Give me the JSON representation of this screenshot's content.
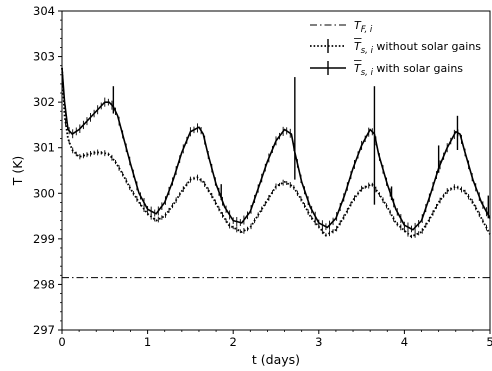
{
  "chart_data": {
    "type": "line",
    "title": "",
    "xlabel": "t (days)",
    "ylabel": "T (K)",
    "xlim": [
      0,
      5
    ],
    "ylim": [
      297,
      304
    ],
    "xticks": [
      "0",
      "1",
      "2",
      "3",
      "4",
      "5"
    ],
    "yticks": [
      "297",
      "298",
      "299",
      "300",
      "301",
      "302",
      "303",
      "304"
    ],
    "grid": false,
    "legend_position": "top-right",
    "series": [
      {
        "name": "T_{F,i}",
        "legend": {
          "main": "T",
          "sub": "F, i",
          "overline": false,
          "suffix": ""
        },
        "style": "dashdot",
        "x": [
          0,
          5
        ],
        "y": [
          298.15,
          298.15
        ]
      },
      {
        "name": "T̄_{s,i} without solar gains",
        "legend": {
          "main": "T",
          "sub": "s, i",
          "overline": true,
          "suffix": " without solar gains"
        },
        "style": "dotted",
        "errorbars": true,
        "x": [
          0.0,
          0.03,
          0.07,
          0.12,
          0.2,
          0.3,
          0.4,
          0.5,
          0.55,
          0.62,
          0.7,
          0.8,
          0.9,
          1.0,
          1.1,
          1.2,
          1.3,
          1.4,
          1.5,
          1.58,
          1.65,
          1.75,
          1.85,
          1.95,
          2.1,
          2.2,
          2.3,
          2.4,
          2.5,
          2.6,
          2.7,
          2.8,
          2.9,
          3.08,
          3.2,
          3.3,
          3.4,
          3.5,
          3.62,
          3.7,
          3.8,
          3.9,
          4.08,
          4.2,
          4.3,
          4.4,
          4.5,
          4.6,
          4.7,
          4.8,
          4.9,
          5.0
        ],
        "y": [
          302.75,
          301.7,
          301.2,
          300.95,
          300.8,
          300.85,
          300.9,
          300.88,
          300.85,
          300.7,
          300.45,
          300.1,
          299.8,
          299.55,
          299.4,
          299.5,
          299.75,
          300.05,
          300.3,
          300.35,
          300.25,
          299.95,
          299.6,
          299.3,
          299.15,
          299.25,
          299.55,
          299.85,
          300.15,
          300.25,
          300.15,
          299.85,
          299.5,
          299.08,
          299.2,
          299.5,
          299.85,
          300.1,
          300.2,
          300.0,
          299.7,
          299.35,
          299.05,
          299.15,
          299.45,
          299.8,
          300.05,
          300.15,
          300.05,
          299.8,
          299.45,
          299.1
        ]
      },
      {
        "name": "T̄_{s,i} with solar gains",
        "legend": {
          "main": "T",
          "sub": "s, i",
          "overline": true,
          "suffix": " with solar gains"
        },
        "style": "solid",
        "errorbars": true,
        "x": [
          0.0,
          0.03,
          0.07,
          0.12,
          0.2,
          0.3,
          0.4,
          0.5,
          0.55,
          0.6,
          0.65,
          0.7,
          0.8,
          0.9,
          1.0,
          1.1,
          1.2,
          1.3,
          1.4,
          1.5,
          1.6,
          1.65,
          1.7,
          1.8,
          1.9,
          2.0,
          2.1,
          2.2,
          2.3,
          2.4,
          2.5,
          2.6,
          2.68,
          2.72,
          2.8,
          2.9,
          3.0,
          3.1,
          3.2,
          3.3,
          3.4,
          3.5,
          3.6,
          3.65,
          3.7,
          3.8,
          3.9,
          4.0,
          4.1,
          4.2,
          4.3,
          4.4,
          4.5,
          4.6,
          4.65,
          4.7,
          4.8,
          4.9,
          5.0
        ],
        "y": [
          302.75,
          302.0,
          301.4,
          301.3,
          301.4,
          301.6,
          301.8,
          302.0,
          302.0,
          301.9,
          301.7,
          301.35,
          300.65,
          300.0,
          299.65,
          299.55,
          299.8,
          300.3,
          300.9,
          301.35,
          301.45,
          301.3,
          300.9,
          300.2,
          299.7,
          299.4,
          299.35,
          299.6,
          300.15,
          300.7,
          301.15,
          301.4,
          301.3,
          300.9,
          300.25,
          299.7,
          299.35,
          299.25,
          299.45,
          299.95,
          300.55,
          301.05,
          301.4,
          301.3,
          300.85,
          300.2,
          299.65,
          299.3,
          299.2,
          299.4,
          299.95,
          300.55,
          301.0,
          301.35,
          301.3,
          300.95,
          300.3,
          299.8,
          299.45
        ]
      }
    ],
    "error_spikes": [
      {
        "series": 2,
        "x": 0.6,
        "low": 301.75,
        "high": 302.35
      },
      {
        "series": 2,
        "x": 2.72,
        "low": 300.3,
        "high": 302.55
      },
      {
        "series": 2,
        "x": 3.65,
        "low": 299.75,
        "high": 302.35
      },
      {
        "series": 2,
        "x": 4.62,
        "low": 300.95,
        "high": 301.7
      },
      {
        "series": 2,
        "x": 4.4,
        "low": 300.45,
        "high": 301.05
      },
      {
        "series": 2,
        "x": 1.86,
        "low": 299.85,
        "high": 300.2
      },
      {
        "series": 2,
        "x": 4.98,
        "low": 299.45,
        "high": 299.95
      },
      {
        "series": 2,
        "x": 3.85,
        "low": 299.85,
        "high": 300.15
      }
    ]
  }
}
